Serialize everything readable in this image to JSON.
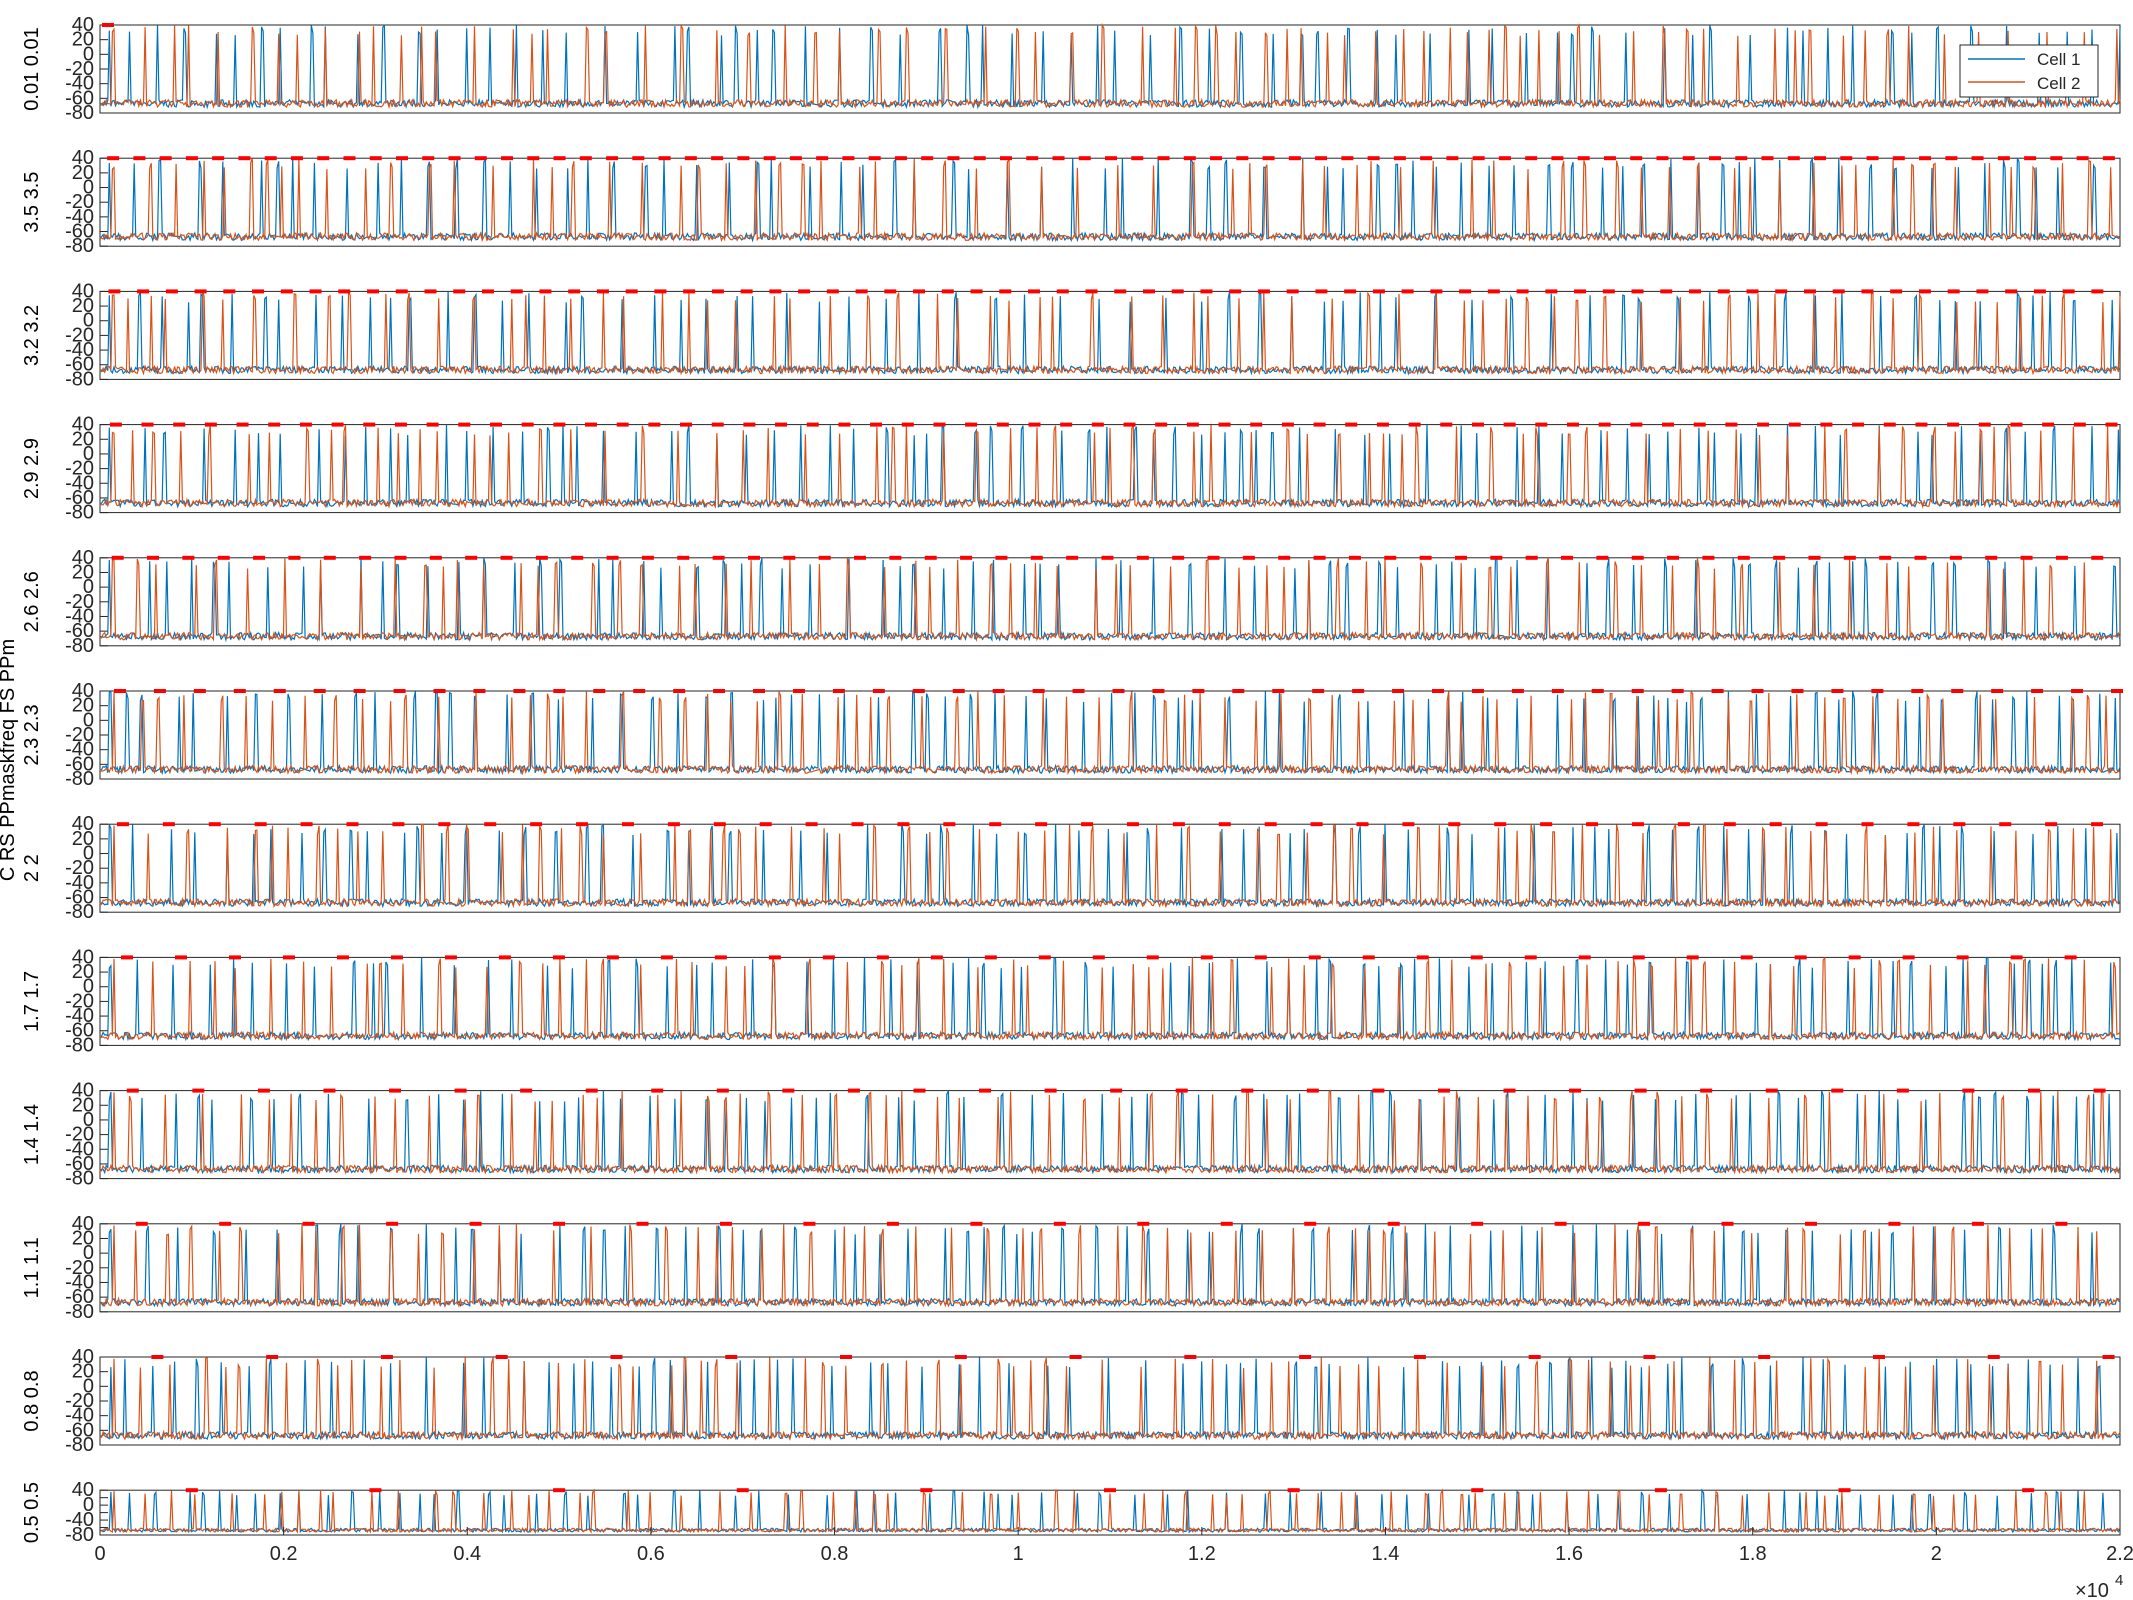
{
  "chart_data": {
    "type": "line",
    "layout": "12 vertically stacked panels sharing one x-axis",
    "legend": {
      "placement": "top-right (first panel)",
      "entries": [
        "Cell 1",
        "Cell 2"
      ]
    },
    "ylabel": "C RS PPmaskfreq FS PPm",
    "x_multiplier_label": "×10",
    "x_multiplier_exp": "4",
    "xlim": [
      0,
      2.2
    ],
    "x_ticks": [
      "0",
      "0.2",
      "0.4",
      "0.6",
      "0.8",
      "1",
      "1.2",
      "1.4",
      "1.6",
      "1.8",
      "2",
      "2.2"
    ],
    "ylim": [
      -80,
      40
    ],
    "y_ticks": [
      "40",
      "20",
      "0",
      "-20",
      "-40",
      "-60",
      "-80"
    ],
    "grid": false,
    "series": [
      {
        "name": "Cell 1",
        "color": "#0072BD"
      },
      {
        "name": "Cell 2",
        "color": "#D95319"
      }
    ],
    "marker_color": "#FF0000",
    "marker_level": 40,
    "panels": [
      {
        "param_label": "0.01 0.01",
        "pulse_interval": 0.0
      },
      {
        "param_label": "3.5 3.5",
        "pulse_interval": 0.0286
      },
      {
        "param_label": "3.2 3.2",
        "pulse_interval": 0.0313
      },
      {
        "param_label": "2.9 2.9",
        "pulse_interval": 0.0345
      },
      {
        "param_label": "2.6 2.6",
        "pulse_interval": 0.0385
      },
      {
        "param_label": "2.3 2.3",
        "pulse_interval": 0.0435
      },
      {
        "param_label": "2 2",
        "pulse_interval": 0.05
      },
      {
        "param_label": "1.7 1.7",
        "pulse_interval": 0.0588
      },
      {
        "param_label": "1.4 1.4",
        "pulse_interval": 0.0714
      },
      {
        "param_label": "1.1 1.1",
        "pulse_interval": 0.0909
      },
      {
        "param_label": "0.8 0.8",
        "pulse_interval": 0.125
      },
      {
        "param_label": "0.5 0.5",
        "pulse_interval": 0.2
      }
    ]
  }
}
